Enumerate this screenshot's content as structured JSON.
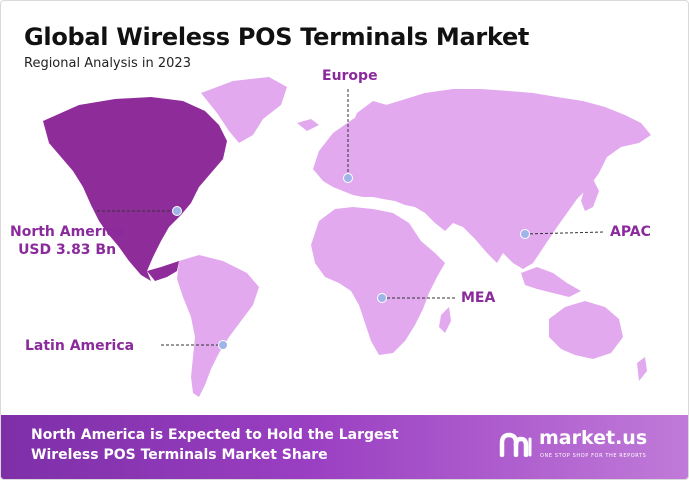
{
  "header": {
    "title": "Global Wireless POS Terminals Market",
    "subtitle": "Regional Analysis in 2023"
  },
  "map": {
    "highlight_color": "#8e2c9a",
    "land_color": "#e2a9ee",
    "marker_color": "#9fb4e8",
    "label_color": "#8b2a9c",
    "regions": [
      {
        "id": "north-america",
        "lines": [
          "North America",
          "USD 3.83 Bn"
        ],
        "highlighted": true
      },
      {
        "id": "europe",
        "lines": [
          "Europe"
        ],
        "highlighted": false
      },
      {
        "id": "apac",
        "lines": [
          "APAC"
        ],
        "highlighted": false
      },
      {
        "id": "mea",
        "lines": [
          "MEA"
        ],
        "highlighted": false
      },
      {
        "id": "latin-america",
        "lines": [
          "Latin America"
        ],
        "highlighted": false
      }
    ]
  },
  "footer": {
    "lines": [
      "North America is Expected to Hold the Largest",
      "Wireless POS Terminals Market Share"
    ],
    "brand": {
      "name": "market.us",
      "tagline": "ONE STOP SHOP FOR THE REPORTS"
    }
  }
}
